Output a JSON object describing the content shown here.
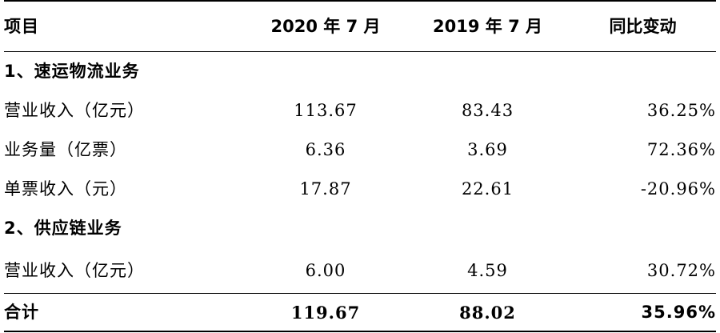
{
  "table": {
    "headers": [
      "项目",
      "2020 年 7 月",
      "2019 年 7 月",
      "同比变动"
    ],
    "sections": [
      {
        "title": "1、速运物流业务",
        "rows": [
          {
            "item": "营业收入（亿元）",
            "y2020": "113.67",
            "y2019": "83.43",
            "change": "36.25%"
          },
          {
            "item": "业务量（亿票）",
            "y2020": "6.36",
            "y2019": "3.69",
            "change": "72.36%"
          },
          {
            "item": "单票收入（元）",
            "y2020": "17.87",
            "y2019": "22.61",
            "change": "-20.96%"
          }
        ]
      },
      {
        "title": "2、供应链业务",
        "rows": [
          {
            "item": "营业收入（亿元）",
            "y2020": "6.00",
            "y2019": "4.59",
            "change": "30.72%"
          }
        ]
      }
    ],
    "total": {
      "item": "合计",
      "y2020": "119.67",
      "y2019": "88.02",
      "change": "35.96%"
    }
  }
}
